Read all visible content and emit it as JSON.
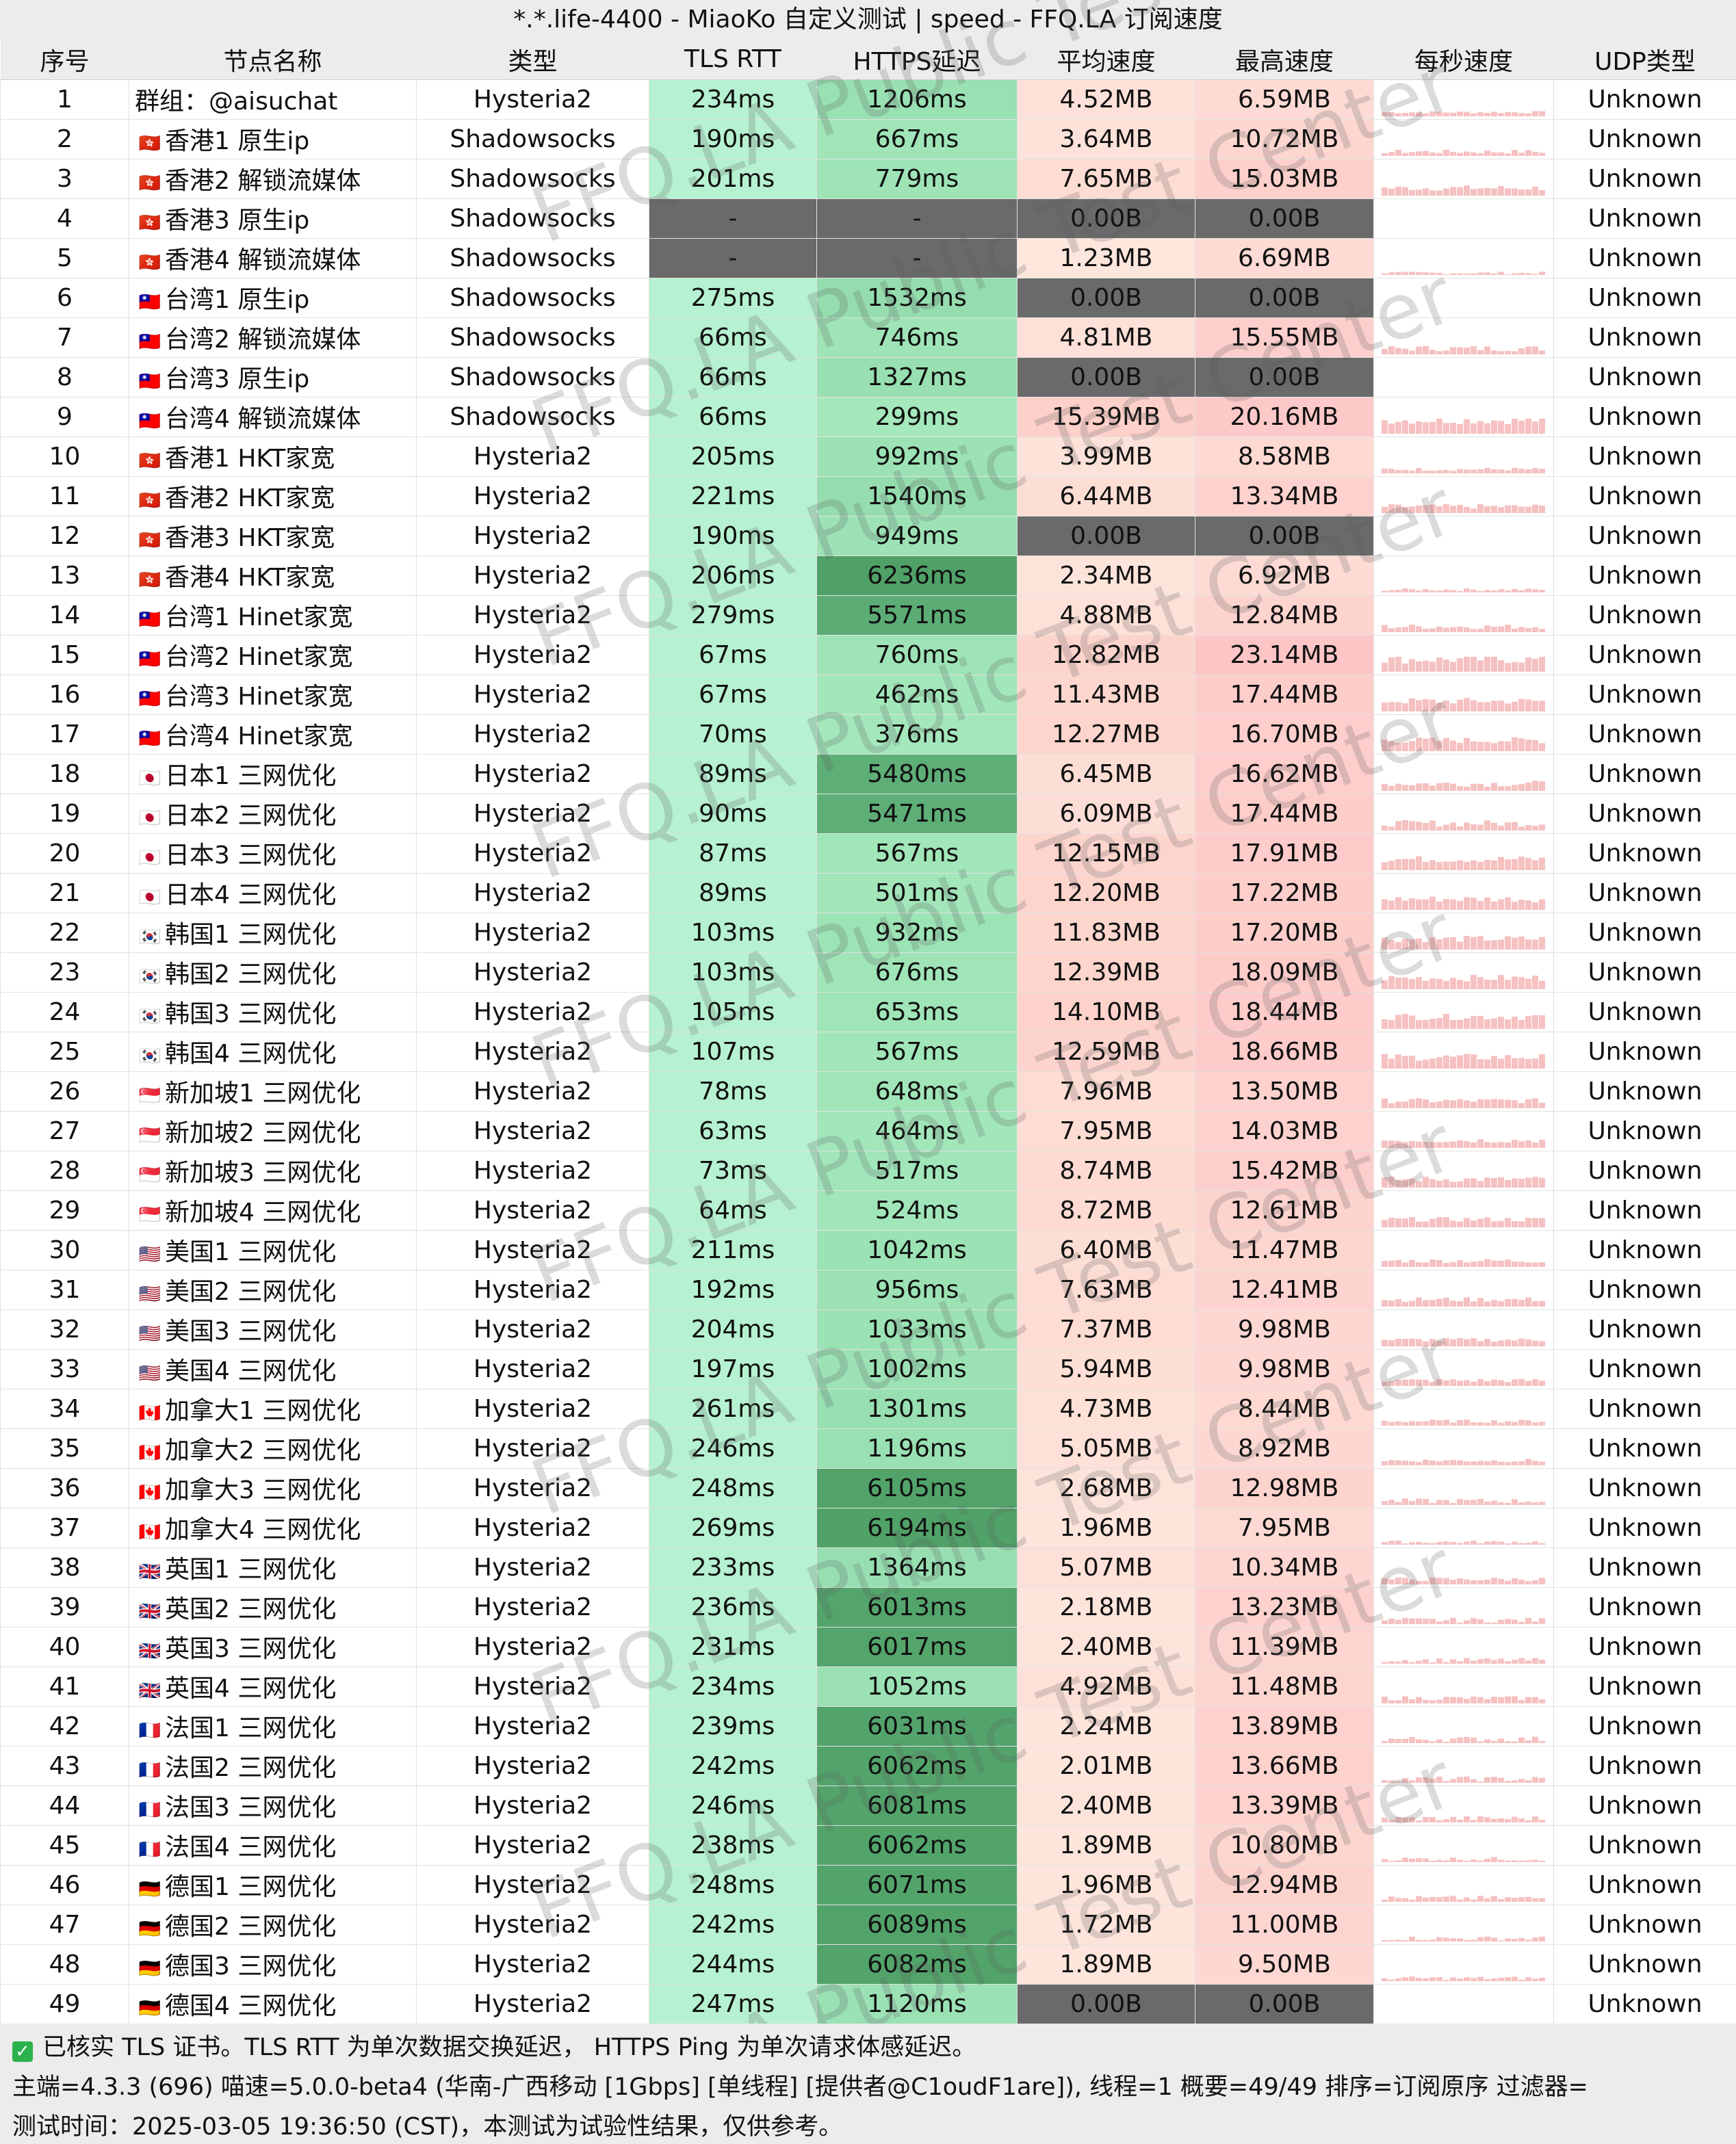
{
  "title": "*.*.life-4400 - MiaoKo 自定义测试 | speed - FFQ.LA 订阅速度",
  "columns": [
    "序号",
    "节点名称",
    "类型",
    "TLS RTT",
    "HTTPS延迟",
    "平均速度",
    "最高速度",
    "每秒速度",
    "UDP类型"
  ],
  "colors": {
    "header_bg": "#ececec",
    "tls_bg": "#b6f1d1",
    "failed_bg": "#6a6a6a",
    "sparkline": "#f6c1c1"
  },
  "flag_icons": {
    "group": "",
    "hk": "🇭🇰",
    "tw": "🇹🇼",
    "jp": "🇯🇵",
    "kr": "🇰🇷",
    "sg": "🇸🇬",
    "us": "🇺🇸",
    "ca": "🇨🇦",
    "gb": "🇬🇧",
    "fr": "🇫🇷",
    "de": "🇩🇪"
  },
  "rows": [
    {
      "idx": "1",
      "flag": "group",
      "name": "群组：@aisuchat",
      "type": "Hysteria2",
      "tls": "234ms",
      "https": "1206ms",
      "avg": "4.52MB",
      "max": "6.59MB",
      "udp": "Unknown"
    },
    {
      "idx": "2",
      "flag": "hk",
      "name": "香港1 原生ip",
      "type": "Shadowsocks",
      "tls": "190ms",
      "https": "667ms",
      "avg": "3.64MB",
      "max": "10.72MB",
      "udp": "Unknown"
    },
    {
      "idx": "3",
      "flag": "hk",
      "name": "香港2 解锁流媒体",
      "type": "Shadowsocks",
      "tls": "201ms",
      "https": "779ms",
      "avg": "7.65MB",
      "max": "15.03MB",
      "udp": "Unknown"
    },
    {
      "idx": "4",
      "flag": "hk",
      "name": "香港3 原生ip",
      "type": "Shadowsocks",
      "tls": "-",
      "https": "-",
      "avg": "0.00B",
      "max": "0.00B",
      "udp": "Unknown"
    },
    {
      "idx": "5",
      "flag": "hk",
      "name": "香港4 解锁流媒体",
      "type": "Shadowsocks",
      "tls": "-",
      "https": "-",
      "avg": "1.23MB",
      "max": "6.69MB",
      "udp": "Unknown"
    },
    {
      "idx": "6",
      "flag": "tw",
      "name": "台湾1 原生ip",
      "type": "Shadowsocks",
      "tls": "275ms",
      "https": "1532ms",
      "avg": "0.00B",
      "max": "0.00B",
      "udp": "Unknown"
    },
    {
      "idx": "7",
      "flag": "tw",
      "name": "台湾2 解锁流媒体",
      "type": "Shadowsocks",
      "tls": "66ms",
      "https": "746ms",
      "avg": "4.81MB",
      "max": "15.55MB",
      "udp": "Unknown"
    },
    {
      "idx": "8",
      "flag": "tw",
      "name": "台湾3 原生ip",
      "type": "Shadowsocks",
      "tls": "66ms",
      "https": "1327ms",
      "avg": "0.00B",
      "max": "0.00B",
      "udp": "Unknown"
    },
    {
      "idx": "9",
      "flag": "tw",
      "name": "台湾4 解锁流媒体",
      "type": "Shadowsocks",
      "tls": "66ms",
      "https": "299ms",
      "avg": "15.39MB",
      "max": "20.16MB",
      "udp": "Unknown"
    },
    {
      "idx": "10",
      "flag": "hk",
      "name": "香港1 HKT家宽",
      "type": "Hysteria2",
      "tls": "205ms",
      "https": "992ms",
      "avg": "3.99MB",
      "max": "8.58MB",
      "udp": "Unknown"
    },
    {
      "idx": "11",
      "flag": "hk",
      "name": "香港2 HKT家宽",
      "type": "Hysteria2",
      "tls": "221ms",
      "https": "1540ms",
      "avg": "6.44MB",
      "max": "13.34MB",
      "udp": "Unknown"
    },
    {
      "idx": "12",
      "flag": "hk",
      "name": "香港3 HKT家宽",
      "type": "Hysteria2",
      "tls": "190ms",
      "https": "949ms",
      "avg": "0.00B",
      "max": "0.00B",
      "udp": "Unknown"
    },
    {
      "idx": "13",
      "flag": "hk",
      "name": "香港4 HKT家宽",
      "type": "Hysteria2",
      "tls": "206ms",
      "https": "6236ms",
      "avg": "2.34MB",
      "max": "6.92MB",
      "udp": "Unknown"
    },
    {
      "idx": "14",
      "flag": "tw",
      "name": "台湾1 Hinet家宽",
      "type": "Hysteria2",
      "tls": "279ms",
      "https": "5571ms",
      "avg": "4.88MB",
      "max": "12.84MB",
      "udp": "Unknown"
    },
    {
      "idx": "15",
      "flag": "tw",
      "name": "台湾2 Hinet家宽",
      "type": "Hysteria2",
      "tls": "67ms",
      "https": "760ms",
      "avg": "12.82MB",
      "max": "23.14MB",
      "udp": "Unknown"
    },
    {
      "idx": "16",
      "flag": "tw",
      "name": "台湾3 Hinet家宽",
      "type": "Hysteria2",
      "tls": "67ms",
      "https": "462ms",
      "avg": "11.43MB",
      "max": "17.44MB",
      "udp": "Unknown"
    },
    {
      "idx": "17",
      "flag": "tw",
      "name": "台湾4 Hinet家宽",
      "type": "Hysteria2",
      "tls": "70ms",
      "https": "376ms",
      "avg": "12.27MB",
      "max": "16.70MB",
      "udp": "Unknown"
    },
    {
      "idx": "18",
      "flag": "jp",
      "name": "日本1 三网优化",
      "type": "Hysteria2",
      "tls": "89ms",
      "https": "5480ms",
      "avg": "6.45MB",
      "max": "16.62MB",
      "udp": "Unknown"
    },
    {
      "idx": "19",
      "flag": "jp",
      "name": "日本2 三网优化",
      "type": "Hysteria2",
      "tls": "90ms",
      "https": "5471ms",
      "avg": "6.09MB",
      "max": "17.44MB",
      "udp": "Unknown"
    },
    {
      "idx": "20",
      "flag": "jp",
      "name": "日本3 三网优化",
      "type": "Hysteria2",
      "tls": "87ms",
      "https": "567ms",
      "avg": "12.15MB",
      "max": "17.91MB",
      "udp": "Unknown"
    },
    {
      "idx": "21",
      "flag": "jp",
      "name": "日本4 三网优化",
      "type": "Hysteria2",
      "tls": "89ms",
      "https": "501ms",
      "avg": "12.20MB",
      "max": "17.22MB",
      "udp": "Unknown"
    },
    {
      "idx": "22",
      "flag": "kr",
      "name": "韩国1 三网优化",
      "type": "Hysteria2",
      "tls": "103ms",
      "https": "932ms",
      "avg": "11.83MB",
      "max": "17.20MB",
      "udp": "Unknown"
    },
    {
      "idx": "23",
      "flag": "kr",
      "name": "韩国2 三网优化",
      "type": "Hysteria2",
      "tls": "103ms",
      "https": "676ms",
      "avg": "12.39MB",
      "max": "18.09MB",
      "udp": "Unknown"
    },
    {
      "idx": "24",
      "flag": "kr",
      "name": "韩国3 三网优化",
      "type": "Hysteria2",
      "tls": "105ms",
      "https": "653ms",
      "avg": "14.10MB",
      "max": "18.44MB",
      "udp": "Unknown"
    },
    {
      "idx": "25",
      "flag": "kr",
      "name": "韩国4 三网优化",
      "type": "Hysteria2",
      "tls": "107ms",
      "https": "567ms",
      "avg": "12.59MB",
      "max": "18.66MB",
      "udp": "Unknown"
    },
    {
      "idx": "26",
      "flag": "sg",
      "name": "新加坡1 三网优化",
      "type": "Hysteria2",
      "tls": "78ms",
      "https": "648ms",
      "avg": "7.96MB",
      "max": "13.50MB",
      "udp": "Unknown"
    },
    {
      "idx": "27",
      "flag": "sg",
      "name": "新加坡2 三网优化",
      "type": "Hysteria2",
      "tls": "63ms",
      "https": "464ms",
      "avg": "7.95MB",
      "max": "14.03MB",
      "udp": "Unknown"
    },
    {
      "idx": "28",
      "flag": "sg",
      "name": "新加坡3 三网优化",
      "type": "Hysteria2",
      "tls": "73ms",
      "https": "517ms",
      "avg": "8.74MB",
      "max": "15.42MB",
      "udp": "Unknown"
    },
    {
      "idx": "29",
      "flag": "sg",
      "name": "新加坡4 三网优化",
      "type": "Hysteria2",
      "tls": "64ms",
      "https": "524ms",
      "avg": "8.72MB",
      "max": "12.61MB",
      "udp": "Unknown"
    },
    {
      "idx": "30",
      "flag": "us",
      "name": "美国1 三网优化",
      "type": "Hysteria2",
      "tls": "211ms",
      "https": "1042ms",
      "avg": "6.40MB",
      "max": "11.47MB",
      "udp": "Unknown"
    },
    {
      "idx": "31",
      "flag": "us",
      "name": "美国2 三网优化",
      "type": "Hysteria2",
      "tls": "192ms",
      "https": "956ms",
      "avg": "7.63MB",
      "max": "12.41MB",
      "udp": "Unknown"
    },
    {
      "idx": "32",
      "flag": "us",
      "name": "美国3 三网优化",
      "type": "Hysteria2",
      "tls": "204ms",
      "https": "1033ms",
      "avg": "7.37MB",
      "max": "9.98MB",
      "udp": "Unknown"
    },
    {
      "idx": "33",
      "flag": "us",
      "name": "美国4 三网优化",
      "type": "Hysteria2",
      "tls": "197ms",
      "https": "1002ms",
      "avg": "5.94MB",
      "max": "9.98MB",
      "udp": "Unknown"
    },
    {
      "idx": "34",
      "flag": "ca",
      "name": "加拿大1 三网优化",
      "type": "Hysteria2",
      "tls": "261ms",
      "https": "1301ms",
      "avg": "4.73MB",
      "max": "8.44MB",
      "udp": "Unknown"
    },
    {
      "idx": "35",
      "flag": "ca",
      "name": "加拿大2 三网优化",
      "type": "Hysteria2",
      "tls": "246ms",
      "https": "1196ms",
      "avg": "5.05MB",
      "max": "8.92MB",
      "udp": "Unknown"
    },
    {
      "idx": "36",
      "flag": "ca",
      "name": "加拿大3 三网优化",
      "type": "Hysteria2",
      "tls": "248ms",
      "https": "6105ms",
      "avg": "2.68MB",
      "max": "12.98MB",
      "udp": "Unknown"
    },
    {
      "idx": "37",
      "flag": "ca",
      "name": "加拿大4 三网优化",
      "type": "Hysteria2",
      "tls": "269ms",
      "https": "6194ms",
      "avg": "1.96MB",
      "max": "7.95MB",
      "udp": "Unknown"
    },
    {
      "idx": "38",
      "flag": "gb",
      "name": "英国1 三网优化",
      "type": "Hysteria2",
      "tls": "233ms",
      "https": "1364ms",
      "avg": "5.07MB",
      "max": "10.34MB",
      "udp": "Unknown"
    },
    {
      "idx": "39",
      "flag": "gb",
      "name": "英国2 三网优化",
      "type": "Hysteria2",
      "tls": "236ms",
      "https": "6013ms",
      "avg": "2.18MB",
      "max": "13.23MB",
      "udp": "Unknown"
    },
    {
      "idx": "40",
      "flag": "gb",
      "name": "英国3 三网优化",
      "type": "Hysteria2",
      "tls": "231ms",
      "https": "6017ms",
      "avg": "2.40MB",
      "max": "11.39MB",
      "udp": "Unknown"
    },
    {
      "idx": "41",
      "flag": "gb",
      "name": "英国4 三网优化",
      "type": "Hysteria2",
      "tls": "234ms",
      "https": "1052ms",
      "avg": "4.92MB",
      "max": "11.48MB",
      "udp": "Unknown"
    },
    {
      "idx": "42",
      "flag": "fr",
      "name": "法国1 三网优化",
      "type": "Hysteria2",
      "tls": "239ms",
      "https": "6031ms",
      "avg": "2.24MB",
      "max": "13.89MB",
      "udp": "Unknown"
    },
    {
      "idx": "43",
      "flag": "fr",
      "name": "法国2 三网优化",
      "type": "Hysteria2",
      "tls": "242ms",
      "https": "6062ms",
      "avg": "2.01MB",
      "max": "13.66MB",
      "udp": "Unknown"
    },
    {
      "idx": "44",
      "flag": "fr",
      "name": "法国3 三网优化",
      "type": "Hysteria2",
      "tls": "246ms",
      "https": "6081ms",
      "avg": "2.40MB",
      "max": "13.39MB",
      "udp": "Unknown"
    },
    {
      "idx": "45",
      "flag": "fr",
      "name": "法国4 三网优化",
      "type": "Hysteria2",
      "tls": "238ms",
      "https": "6062ms",
      "avg": "1.89MB",
      "max": "10.80MB",
      "udp": "Unknown"
    },
    {
      "idx": "46",
      "flag": "de",
      "name": "德国1 三网优化",
      "type": "Hysteria2",
      "tls": "248ms",
      "https": "6071ms",
      "avg": "1.96MB",
      "max": "12.94MB",
      "udp": "Unknown"
    },
    {
      "idx": "47",
      "flag": "de",
      "name": "德国2 三网优化",
      "type": "Hysteria2",
      "tls": "242ms",
      "https": "6089ms",
      "avg": "1.72MB",
      "max": "11.00MB",
      "udp": "Unknown"
    },
    {
      "idx": "48",
      "flag": "de",
      "name": "德国3 三网优化",
      "type": "Hysteria2",
      "tls": "244ms",
      "https": "6082ms",
      "avg": "1.89MB",
      "max": "9.50MB",
      "udp": "Unknown"
    },
    {
      "idx": "49",
      "flag": "de",
      "name": "德国4 三网优化",
      "type": "Hysteria2",
      "tls": "247ms",
      "https": "1120ms",
      "avg": "0.00B",
      "max": "0.00B",
      "udp": "Unknown"
    }
  ],
  "footer": {
    "line1": "已核实 TLS 证书。TLS RTT 为单次数据交换延迟， HTTPS Ping 为单次请求体感延迟。",
    "line2": "主端=4.3.3 (696) 喵速=5.0.0-beta4 (华南-广西移动 [1Gbps] [单线程] [提供者@C1oudF1are]), 线程=1 概要=49/49 排序=订阅原序 过滤器=",
    "line3": "测试时间：2025-03-05 19:36:50 (CST)，本测试为试验性结果，仅供参考。"
  },
  "watermark": "FFQ.LA Public Test Center"
}
